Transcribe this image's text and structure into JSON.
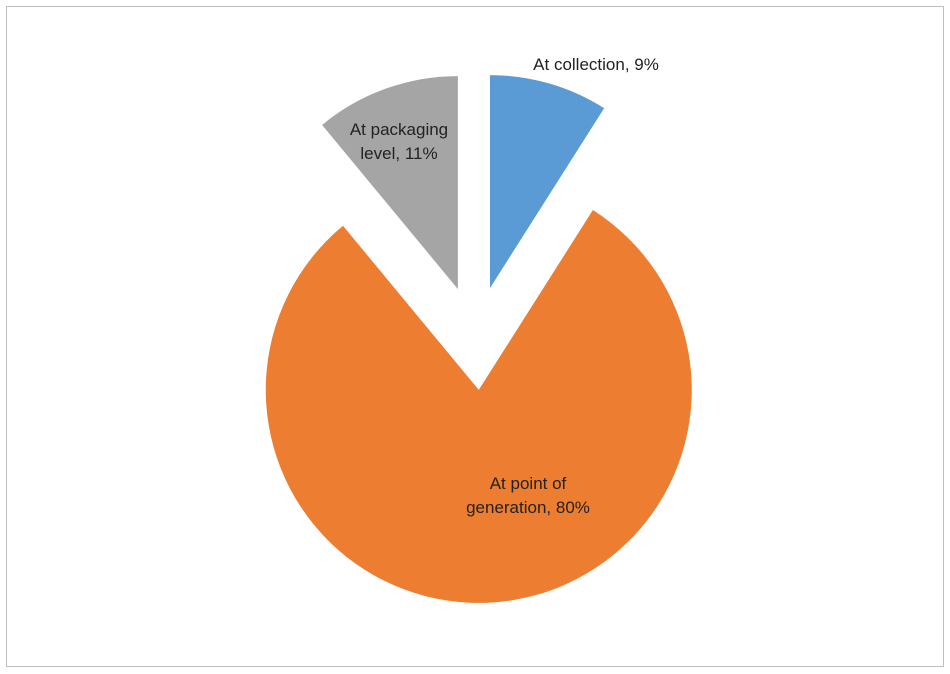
{
  "chart_data": {
    "type": "pie",
    "values": [
      9,
      80,
      11
    ],
    "value_labels": [
      "At collection, 9%",
      "At point of generation, 80%",
      "At packaging level, 11%"
    ],
    "colors": [
      "#5b9bd5",
      "#ed7d31",
      "#a5a5a5"
    ],
    "exploded": true
  }
}
